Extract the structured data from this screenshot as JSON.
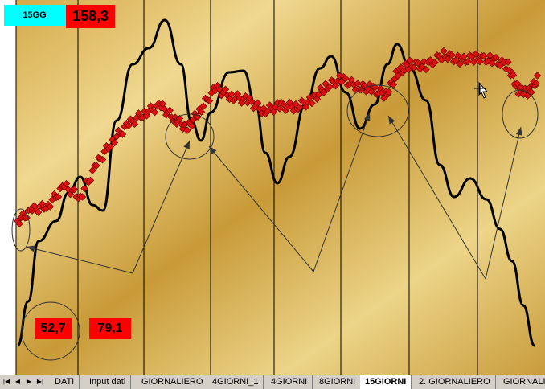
{
  "header": {
    "badge_label": "15GG",
    "top_value": "158,3"
  },
  "readouts": {
    "value_a": "52,7",
    "value_b": "79,1"
  },
  "tabs": {
    "nav": [
      "|◀",
      "◀",
      "▶",
      "▶|"
    ],
    "items": [
      {
        "label": "DATI",
        "active": false
      },
      {
        "label": "Input dati",
        "active": false
      },
      {
        "label": "GIORNALIERO",
        "active": false
      },
      {
        "label": "4GIORNI_1",
        "active": false
      },
      {
        "label": "4GIORNI",
        "active": false
      },
      {
        "label": "8GIORNI",
        "active": false
      },
      {
        "label": "15GIORNI",
        "active": true
      },
      {
        "label": "2. GIORNALIERO",
        "active": false
      },
      {
        "label": "GIORNALIE",
        "active": false
      }
    ]
  },
  "colors": {
    "background_gold": "#d9b45a",
    "marker_red": "#e01010",
    "curve_black": "#000000",
    "badge_cyan": "#00ffff",
    "value_red": "#ff0000"
  }
}
